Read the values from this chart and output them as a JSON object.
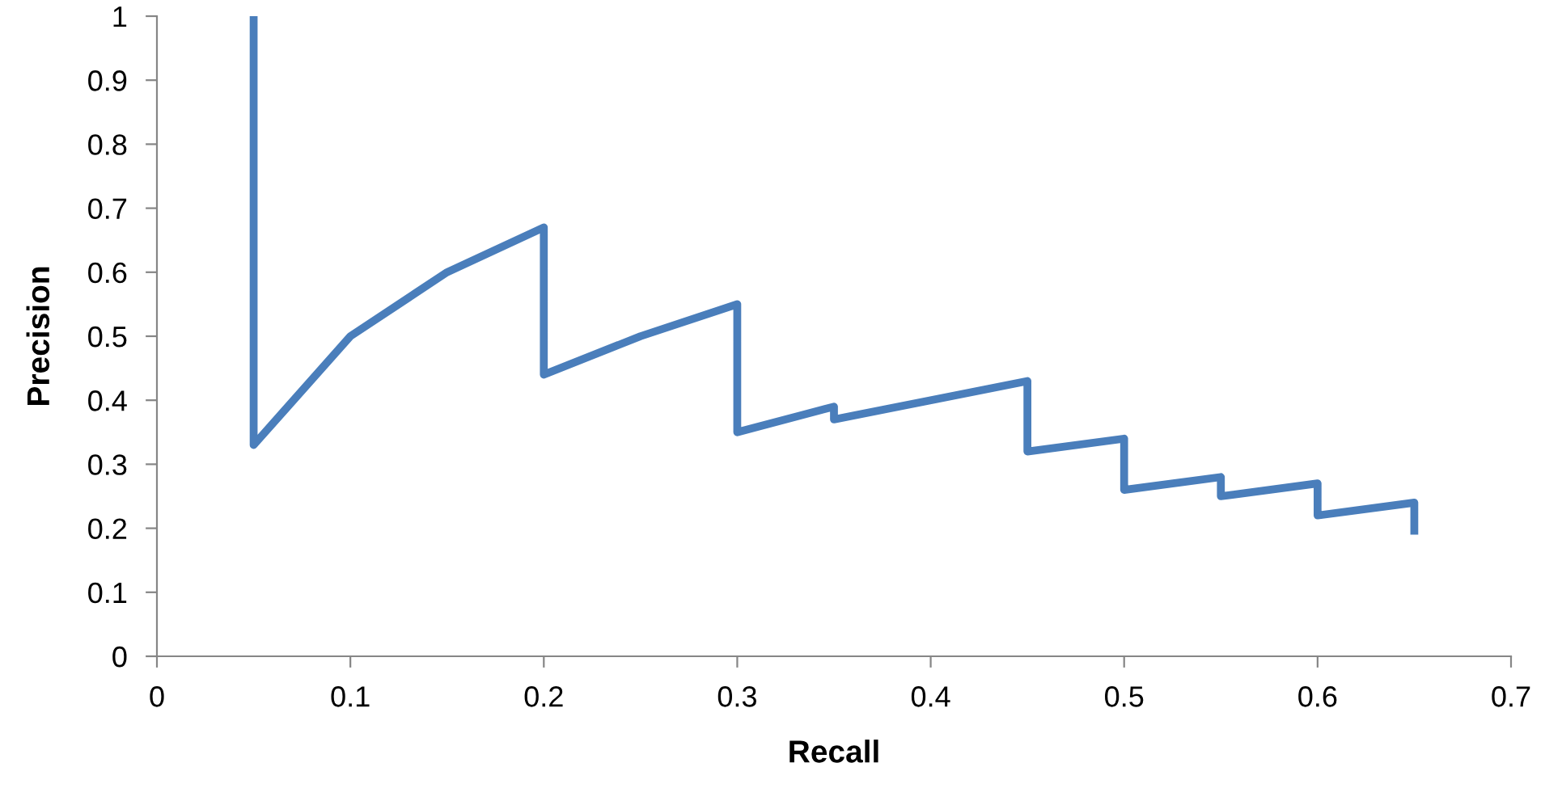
{
  "chart_data": {
    "type": "line",
    "xlabel": "Recall",
    "ylabel": "Precision",
    "xlim": [
      0,
      0.7
    ],
    "xticks": [
      0,
      0.1,
      0.2,
      0.3,
      0.4,
      0.5,
      0.6,
      0.7
    ],
    "ylim": [
      0,
      1
    ],
    "yticks": [
      0,
      0.1,
      0.2,
      0.3,
      0.4,
      0.5,
      0.6,
      0.7,
      0.8,
      0.9,
      1
    ],
    "grid": false,
    "marker": "none",
    "line_style": "solid",
    "series": [
      {
        "color": "#4a7ebb",
        "x": [
          0.05,
          0.05,
          0.1,
          0.15,
          0.2,
          0.2,
          0.25,
          0.3,
          0.3,
          0.35,
          0.35,
          0.4,
          0.45,
          0.45,
          0.5,
          0.5,
          0.55,
          0.55,
          0.6,
          0.6,
          0.65,
          0.65
        ],
        "values": [
          1.0,
          0.33,
          0.5,
          0.6,
          0.67,
          0.44,
          0.5,
          0.55,
          0.35,
          0.39,
          0.37,
          0.4,
          0.43,
          0.32,
          0.34,
          0.26,
          0.28,
          0.25,
          0.27,
          0.22,
          0.24,
          0.19
        ]
      }
    ]
  }
}
